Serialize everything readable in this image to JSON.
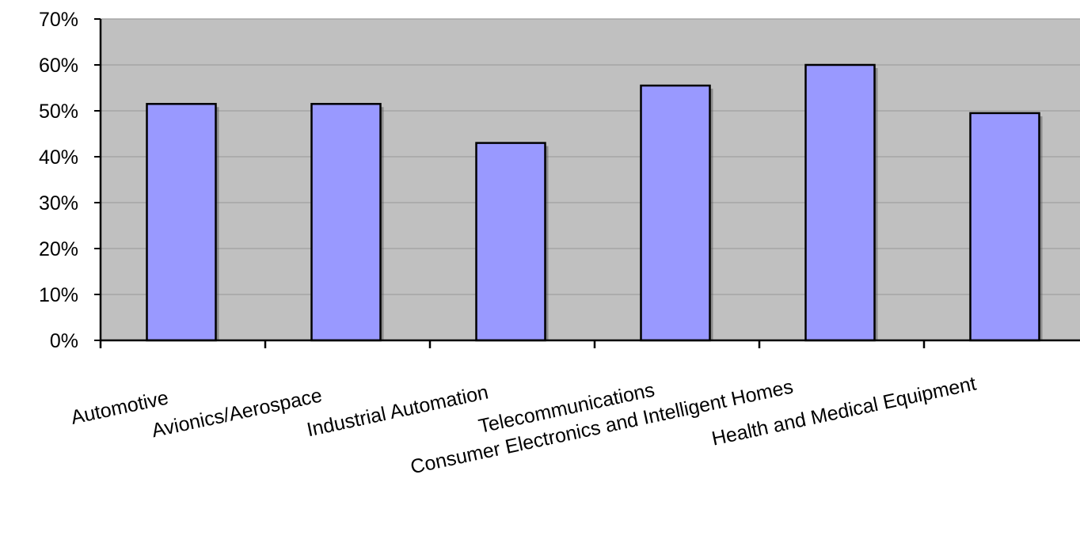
{
  "chart_data": {
    "type": "bar",
    "title": "",
    "xlabel": "",
    "ylabel": "",
    "categories": [
      "Automotive",
      "Avionics/Aerospace",
      "Industrial Automation",
      "Telecommunications",
      "Consumer Electronics and Intelligent Homes",
      "Health and Medical Equipment"
    ],
    "values": [
      51.5,
      51.5,
      43,
      55.5,
      60,
      49.5
    ],
    "ylim": [
      0,
      70
    ],
    "yticks": [
      "0%",
      "10%",
      "20%",
      "30%",
      "40%",
      "50%",
      "60%",
      "70%"
    ],
    "grid": true,
    "legend": "none",
    "colors": {
      "plot_background": "#c0c0c0",
      "bar_fill": "#9999ff",
      "bar_stroke": "#000000",
      "gridline": "#a6a6a6",
      "axis": "#000000"
    }
  }
}
